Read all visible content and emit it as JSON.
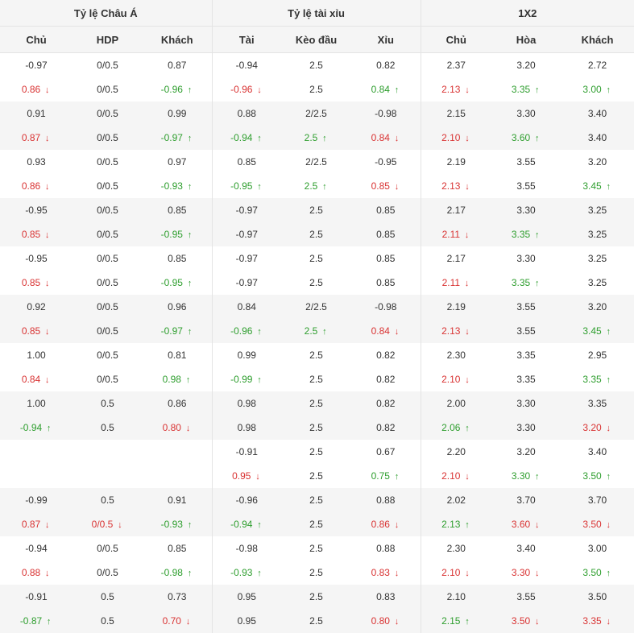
{
  "headers": {
    "groups": [
      "Tỷ lệ Châu Á",
      "Tỷ lệ tài xỉu",
      "1X2"
    ],
    "columns": [
      "Chủ",
      "HDP",
      "Khách",
      "Tài",
      "Kèo đầu",
      "Xỉu",
      "Chủ",
      "Hòa",
      "Khách"
    ]
  },
  "colors": {
    "up": "#2e9e2e",
    "down": "#d93333",
    "stripe": "#f5f5f5"
  },
  "icons": {
    "up": "arrow-up-icon",
    "down": "arrow-down-icon"
  },
  "rows": [
    {
      "cells": [
        {
          "v": "-0.97",
          "d": ""
        },
        {
          "v": "0/0.5",
          "d": ""
        },
        {
          "v": "0.87",
          "d": ""
        },
        {
          "v": "-0.94",
          "d": ""
        },
        {
          "v": "2.5",
          "d": ""
        },
        {
          "v": "0.82",
          "d": ""
        },
        {
          "v": "2.37",
          "d": ""
        },
        {
          "v": "3.20",
          "d": ""
        },
        {
          "v": "2.72",
          "d": ""
        }
      ]
    },
    {
      "cells": [
        {
          "v": "0.86",
          "d": "down"
        },
        {
          "v": "0/0.5",
          "d": ""
        },
        {
          "v": "-0.96",
          "d": "up"
        },
        {
          "v": "-0.96",
          "d": "down"
        },
        {
          "v": "2.5",
          "d": ""
        },
        {
          "v": "0.84",
          "d": "up"
        },
        {
          "v": "2.13",
          "d": "down"
        },
        {
          "v": "3.35",
          "d": "up"
        },
        {
          "v": "3.00",
          "d": "up"
        }
      ]
    },
    {
      "cells": [
        {
          "v": "0.91",
          "d": ""
        },
        {
          "v": "0/0.5",
          "d": ""
        },
        {
          "v": "0.99",
          "d": ""
        },
        {
          "v": "0.88",
          "d": ""
        },
        {
          "v": "2/2.5",
          "d": ""
        },
        {
          "v": "-0.98",
          "d": ""
        },
        {
          "v": "2.15",
          "d": ""
        },
        {
          "v": "3.30",
          "d": ""
        },
        {
          "v": "3.40",
          "d": ""
        }
      ]
    },
    {
      "cells": [
        {
          "v": "0.87",
          "d": "down"
        },
        {
          "v": "0/0.5",
          "d": ""
        },
        {
          "v": "-0.97",
          "d": "up"
        },
        {
          "v": "-0.94",
          "d": "up"
        },
        {
          "v": "2.5",
          "d": "up"
        },
        {
          "v": "0.84",
          "d": "down"
        },
        {
          "v": "2.10",
          "d": "down"
        },
        {
          "v": "3.60",
          "d": "up"
        },
        {
          "v": "3.40",
          "d": ""
        }
      ]
    },
    {
      "cells": [
        {
          "v": "0.93",
          "d": ""
        },
        {
          "v": "0/0.5",
          "d": ""
        },
        {
          "v": "0.97",
          "d": ""
        },
        {
          "v": "0.85",
          "d": ""
        },
        {
          "v": "2/2.5",
          "d": ""
        },
        {
          "v": "-0.95",
          "d": ""
        },
        {
          "v": "2.19",
          "d": ""
        },
        {
          "v": "3.55",
          "d": ""
        },
        {
          "v": "3.20",
          "d": ""
        }
      ]
    },
    {
      "cells": [
        {
          "v": "0.86",
          "d": "down"
        },
        {
          "v": "0/0.5",
          "d": ""
        },
        {
          "v": "-0.93",
          "d": "up"
        },
        {
          "v": "-0.95",
          "d": "up"
        },
        {
          "v": "2.5",
          "d": "up"
        },
        {
          "v": "0.85",
          "d": "down"
        },
        {
          "v": "2.13",
          "d": "down"
        },
        {
          "v": "3.55",
          "d": ""
        },
        {
          "v": "3.45",
          "d": "up"
        }
      ]
    },
    {
      "cells": [
        {
          "v": "-0.95",
          "d": ""
        },
        {
          "v": "0/0.5",
          "d": ""
        },
        {
          "v": "0.85",
          "d": ""
        },
        {
          "v": "-0.97",
          "d": ""
        },
        {
          "v": "2.5",
          "d": ""
        },
        {
          "v": "0.85",
          "d": ""
        },
        {
          "v": "2.17",
          "d": ""
        },
        {
          "v": "3.30",
          "d": ""
        },
        {
          "v": "3.25",
          "d": ""
        }
      ]
    },
    {
      "cells": [
        {
          "v": "0.85",
          "d": "down"
        },
        {
          "v": "0/0.5",
          "d": ""
        },
        {
          "v": "-0.95",
          "d": "up"
        },
        {
          "v": "-0.97",
          "d": ""
        },
        {
          "v": "2.5",
          "d": ""
        },
        {
          "v": "0.85",
          "d": ""
        },
        {
          "v": "2.11",
          "d": "down"
        },
        {
          "v": "3.35",
          "d": "up"
        },
        {
          "v": "3.25",
          "d": ""
        }
      ]
    },
    {
      "cells": [
        {
          "v": "-0.95",
          "d": ""
        },
        {
          "v": "0/0.5",
          "d": ""
        },
        {
          "v": "0.85",
          "d": ""
        },
        {
          "v": "-0.97",
          "d": ""
        },
        {
          "v": "2.5",
          "d": ""
        },
        {
          "v": "0.85",
          "d": ""
        },
        {
          "v": "2.17",
          "d": ""
        },
        {
          "v": "3.30",
          "d": ""
        },
        {
          "v": "3.25",
          "d": ""
        }
      ]
    },
    {
      "cells": [
        {
          "v": "0.85",
          "d": "down"
        },
        {
          "v": "0/0.5",
          "d": ""
        },
        {
          "v": "-0.95",
          "d": "up"
        },
        {
          "v": "-0.97",
          "d": ""
        },
        {
          "v": "2.5",
          "d": ""
        },
        {
          "v": "0.85",
          "d": ""
        },
        {
          "v": "2.11",
          "d": "down"
        },
        {
          "v": "3.35",
          "d": "up"
        },
        {
          "v": "3.25",
          "d": ""
        }
      ]
    },
    {
      "cells": [
        {
          "v": "0.92",
          "d": ""
        },
        {
          "v": "0/0.5",
          "d": ""
        },
        {
          "v": "0.96",
          "d": ""
        },
        {
          "v": "0.84",
          "d": ""
        },
        {
          "v": "2/2.5",
          "d": ""
        },
        {
          "v": "-0.98",
          "d": ""
        },
        {
          "v": "2.19",
          "d": ""
        },
        {
          "v": "3.55",
          "d": ""
        },
        {
          "v": "3.20",
          "d": ""
        }
      ]
    },
    {
      "cells": [
        {
          "v": "0.85",
          "d": "down"
        },
        {
          "v": "0/0.5",
          "d": ""
        },
        {
          "v": "-0.97",
          "d": "up"
        },
        {
          "v": "-0.96",
          "d": "up"
        },
        {
          "v": "2.5",
          "d": "up"
        },
        {
          "v": "0.84",
          "d": "down"
        },
        {
          "v": "2.13",
          "d": "down"
        },
        {
          "v": "3.55",
          "d": ""
        },
        {
          "v": "3.45",
          "d": "up"
        }
      ]
    },
    {
      "cells": [
        {
          "v": "1.00",
          "d": ""
        },
        {
          "v": "0/0.5",
          "d": ""
        },
        {
          "v": "0.81",
          "d": ""
        },
        {
          "v": "0.99",
          "d": ""
        },
        {
          "v": "2.5",
          "d": ""
        },
        {
          "v": "0.82",
          "d": ""
        },
        {
          "v": "2.30",
          "d": ""
        },
        {
          "v": "3.35",
          "d": ""
        },
        {
          "v": "2.95",
          "d": ""
        }
      ]
    },
    {
      "cells": [
        {
          "v": "0.84",
          "d": "down"
        },
        {
          "v": "0/0.5",
          "d": ""
        },
        {
          "v": "0.98",
          "d": "up"
        },
        {
          "v": "-0.99",
          "d": "up"
        },
        {
          "v": "2.5",
          "d": ""
        },
        {
          "v": "0.82",
          "d": ""
        },
        {
          "v": "2.10",
          "d": "down"
        },
        {
          "v": "3.35",
          "d": ""
        },
        {
          "v": "3.35",
          "d": "up"
        }
      ]
    },
    {
      "cells": [
        {
          "v": "1.00",
          "d": ""
        },
        {
          "v": "0.5",
          "d": ""
        },
        {
          "v": "0.86",
          "d": ""
        },
        {
          "v": "0.98",
          "d": ""
        },
        {
          "v": "2.5",
          "d": ""
        },
        {
          "v": "0.82",
          "d": ""
        },
        {
          "v": "2.00",
          "d": ""
        },
        {
          "v": "3.30",
          "d": ""
        },
        {
          "v": "3.35",
          "d": ""
        }
      ]
    },
    {
      "cells": [
        {
          "v": "-0.94",
          "d": "up"
        },
        {
          "v": "0.5",
          "d": ""
        },
        {
          "v": "0.80",
          "d": "down"
        },
        {
          "v": "0.98",
          "d": ""
        },
        {
          "v": "2.5",
          "d": ""
        },
        {
          "v": "0.82",
          "d": ""
        },
        {
          "v": "2.06",
          "d": "up"
        },
        {
          "v": "3.30",
          "d": ""
        },
        {
          "v": "3.20",
          "d": "down"
        }
      ]
    },
    {
      "cells": [
        {
          "v": "",
          "d": ""
        },
        {
          "v": "",
          "d": ""
        },
        {
          "v": "",
          "d": ""
        },
        {
          "v": "-0.91",
          "d": ""
        },
        {
          "v": "2.5",
          "d": ""
        },
        {
          "v": "0.67",
          "d": ""
        },
        {
          "v": "2.20",
          "d": ""
        },
        {
          "v": "3.20",
          "d": ""
        },
        {
          "v": "3.40",
          "d": ""
        }
      ]
    },
    {
      "cells": [
        {
          "v": "",
          "d": ""
        },
        {
          "v": "",
          "d": ""
        },
        {
          "v": "",
          "d": ""
        },
        {
          "v": "0.95",
          "d": "down"
        },
        {
          "v": "2.5",
          "d": ""
        },
        {
          "v": "0.75",
          "d": "up"
        },
        {
          "v": "2.10",
          "d": "down"
        },
        {
          "v": "3.30",
          "d": "up"
        },
        {
          "v": "3.50",
          "d": "up"
        }
      ]
    },
    {
      "cells": [
        {
          "v": "-0.99",
          "d": ""
        },
        {
          "v": "0.5",
          "d": ""
        },
        {
          "v": "0.91",
          "d": ""
        },
        {
          "v": "-0.96",
          "d": ""
        },
        {
          "v": "2.5",
          "d": ""
        },
        {
          "v": "0.88",
          "d": ""
        },
        {
          "v": "2.02",
          "d": ""
        },
        {
          "v": "3.70",
          "d": ""
        },
        {
          "v": "3.70",
          "d": ""
        }
      ]
    },
    {
      "cells": [
        {
          "v": "0.87",
          "d": "down"
        },
        {
          "v": "0/0.5",
          "d": "down"
        },
        {
          "v": "-0.93",
          "d": "up"
        },
        {
          "v": "-0.94",
          "d": "up"
        },
        {
          "v": "2.5",
          "d": ""
        },
        {
          "v": "0.86",
          "d": "down"
        },
        {
          "v": "2.13",
          "d": "up"
        },
        {
          "v": "3.60",
          "d": "down"
        },
        {
          "v": "3.50",
          "d": "down"
        }
      ]
    },
    {
      "cells": [
        {
          "v": "-0.94",
          "d": ""
        },
        {
          "v": "0/0.5",
          "d": ""
        },
        {
          "v": "0.85",
          "d": ""
        },
        {
          "v": "-0.98",
          "d": ""
        },
        {
          "v": "2.5",
          "d": ""
        },
        {
          "v": "0.88",
          "d": ""
        },
        {
          "v": "2.30",
          "d": ""
        },
        {
          "v": "3.40",
          "d": ""
        },
        {
          "v": "3.00",
          "d": ""
        }
      ]
    },
    {
      "cells": [
        {
          "v": "0.88",
          "d": "down"
        },
        {
          "v": "0/0.5",
          "d": ""
        },
        {
          "v": "-0.98",
          "d": "up"
        },
        {
          "v": "-0.93",
          "d": "up"
        },
        {
          "v": "2.5",
          "d": ""
        },
        {
          "v": "0.83",
          "d": "down"
        },
        {
          "v": "2.10",
          "d": "down"
        },
        {
          "v": "3.30",
          "d": "down"
        },
        {
          "v": "3.50",
          "d": "up"
        }
      ]
    },
    {
      "cells": [
        {
          "v": "-0.91",
          "d": ""
        },
        {
          "v": "0.5",
          "d": ""
        },
        {
          "v": "0.73",
          "d": ""
        },
        {
          "v": "0.95",
          "d": ""
        },
        {
          "v": "2.5",
          "d": ""
        },
        {
          "v": "0.83",
          "d": ""
        },
        {
          "v": "2.10",
          "d": ""
        },
        {
          "v": "3.55",
          "d": ""
        },
        {
          "v": "3.50",
          "d": ""
        }
      ]
    },
    {
      "cells": [
        {
          "v": "-0.87",
          "d": "up"
        },
        {
          "v": "0.5",
          "d": ""
        },
        {
          "v": "0.70",
          "d": "down"
        },
        {
          "v": "0.95",
          "d": ""
        },
        {
          "v": "2.5",
          "d": ""
        },
        {
          "v": "0.80",
          "d": "down"
        },
        {
          "v": "2.15",
          "d": "up"
        },
        {
          "v": "3.50",
          "d": "down"
        },
        {
          "v": "3.35",
          "d": "down"
        }
      ]
    }
  ]
}
